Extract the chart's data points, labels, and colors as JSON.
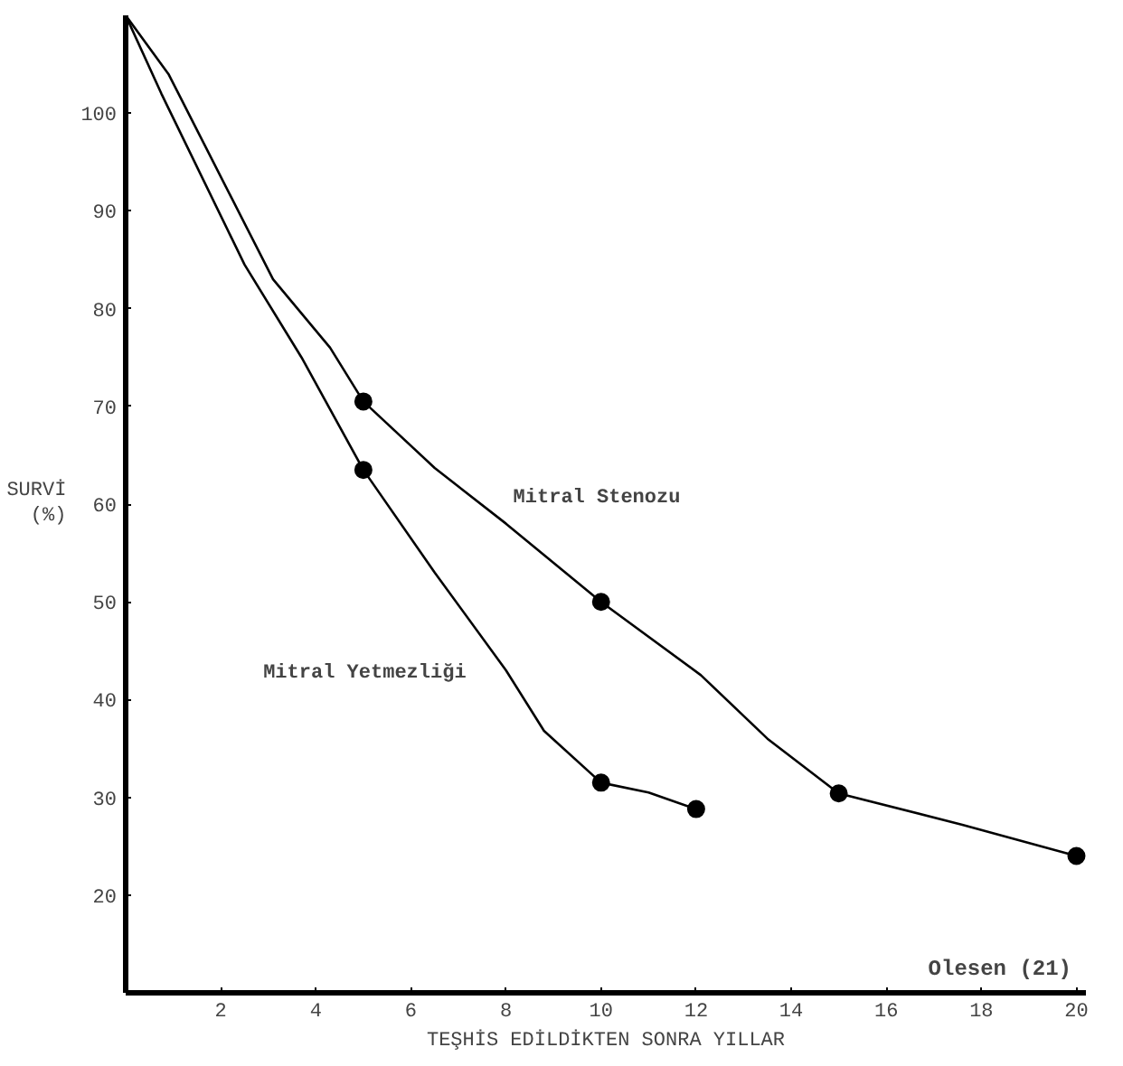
{
  "chart_data": {
    "type": "line",
    "xlabel": "TEŞHİS EDİLDİKTEN SONRA YILLAR",
    "ylabel": "SURVİ\n(%)",
    "xlim": [
      0,
      20.2
    ],
    "ylim": [
      10,
      110
    ],
    "xticks": [
      2,
      4,
      6,
      8,
      10,
      12,
      14,
      16,
      18,
      20
    ],
    "yticks": [
      20,
      30,
      40,
      50,
      60,
      70,
      80,
      90,
      100
    ],
    "grid": false,
    "series": [
      {
        "name": "Mitral Stenozu",
        "color": "#000000",
        "marker": "none",
        "x": [
          0,
          0.9,
          3.1,
          4.3,
          5,
          6.5,
          8,
          10,
          12.1,
          13.5,
          15,
          17.6,
          20
        ],
        "values": [
          110,
          104,
          83,
          76,
          70.5,
          63.7,
          58,
          50,
          42.5,
          36,
          30.4,
          27.2,
          24
        ]
      },
      {
        "name": "Mitral Yetmezliği",
        "color": "#000000",
        "marker": "none",
        "x": [
          0,
          0.75,
          2.5,
          3.7,
          5,
          6.5,
          8,
          8.8,
          10,
          11,
          12
        ],
        "values": [
          110,
          102,
          84.5,
          75,
          63.5,
          53,
          43,
          36.8,
          31.5,
          30.5,
          28.8
        ]
      },
      {
        "type": "scatter",
        "color": "#000000",
        "marker": "circle",
        "x": [
          5,
          10,
          15,
          20
        ],
        "values": [
          70.5,
          50,
          30.4,
          24
        ]
      },
      {
        "type": "scatter",
        "color": "#000000",
        "marker": "circle",
        "x": [
          5,
          10,
          12
        ],
        "values": [
          63.5,
          31.5,
          28.8
        ]
      }
    ],
    "annotations": [
      "Olesen (21)"
    ]
  }
}
